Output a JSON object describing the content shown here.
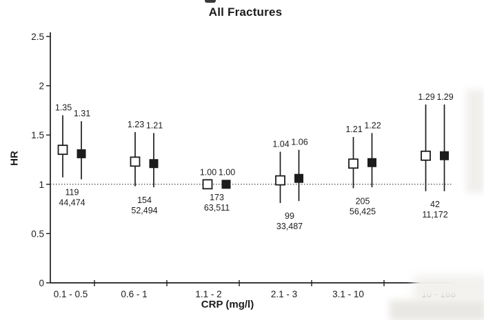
{
  "chart_data": {
    "type": "scatter",
    "subtype": "forest-plot-error-bars",
    "title": "All Fractures",
    "xlabel": "CRP (mg/l)",
    "ylabel": "HR",
    "ylim": [
      0,
      2.5
    ],
    "ytick_values": [
      0,
      0.5,
      1,
      1.5,
      2,
      2.5
    ],
    "ytick_labels": [
      "0",
      "0.5",
      "1",
      "1.5",
      "2",
      "2.5"
    ],
    "reference_line": 1.0,
    "grid": false,
    "legend": "none",
    "ink_color": "#1c1c1c",
    "marker_style": {
      "open": {
        "fill": "#ffffff",
        "stroke": "#1c1c1c"
      },
      "filled": {
        "fill": "#1c1c1c"
      }
    },
    "series_names": [
      "open-square",
      "filled-square"
    ],
    "categories": [
      "0.1 - 0.5",
      "0.6 - 1",
      "1.1 - 2",
      "2.1 - 3",
      "3.1 - 10",
      "10 - 188"
    ],
    "groups": [
      {
        "category": "0.1 - 0.5",
        "events": "119",
        "total": "44,474",
        "open": {
          "hr": 1.35,
          "lo": 1.07,
          "hi": 1.7,
          "label": "1.35"
        },
        "filled": {
          "hr": 1.31,
          "lo": 1.05,
          "hi": 1.64,
          "label": "1.31"
        }
      },
      {
        "category": "0.6 - 1",
        "events": "154",
        "total": "52,494",
        "open": {
          "hr": 1.23,
          "lo": 0.98,
          "hi": 1.53,
          "label": "1.23"
        },
        "filled": {
          "hr": 1.21,
          "lo": 0.97,
          "hi": 1.52,
          "label": "1.21"
        }
      },
      {
        "category": "1.1 - 2",
        "events": "173",
        "total": "63,511",
        "open": {
          "hr": 1.0,
          "lo": 1.0,
          "hi": 1.0,
          "label": "1.00"
        },
        "filled": {
          "hr": 1.0,
          "lo": 1.0,
          "hi": 1.0,
          "label": "1.00"
        }
      },
      {
        "category": "2.1 - 3",
        "events": "99",
        "total": "33,487",
        "open": {
          "hr": 1.04,
          "lo": 0.81,
          "hi": 1.33,
          "label": "1.04"
        },
        "filled": {
          "hr": 1.06,
          "lo": 0.83,
          "hi": 1.35,
          "label": "1.06"
        }
      },
      {
        "category": "3.1 - 10",
        "events": "205",
        "total": "56,425",
        "open": {
          "hr": 1.21,
          "lo": 0.96,
          "hi": 1.48,
          "label": "1.21"
        },
        "filled": {
          "hr": 1.22,
          "lo": 0.97,
          "hi": 1.52,
          "label": "1.22"
        }
      },
      {
        "category": "10 - 188",
        "events": "42",
        "total": "11,172",
        "open": {
          "hr": 1.29,
          "lo": 0.93,
          "hi": 1.81,
          "label": "1.29"
        },
        "filled": {
          "hr": 1.29,
          "lo": 0.93,
          "hi": 1.81,
          "label": "1.29"
        }
      }
    ]
  }
}
